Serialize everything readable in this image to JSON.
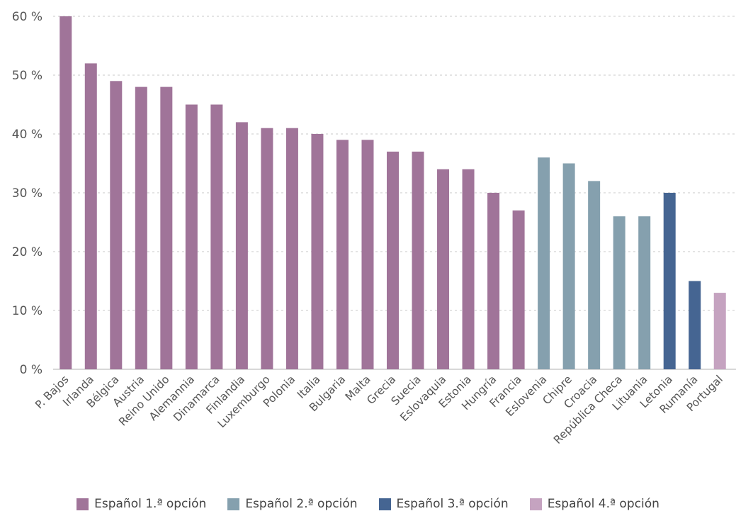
{
  "chart_data": {
    "type": "bar",
    "title": "",
    "xlabel": "",
    "ylabel": "",
    "ylim": [
      0,
      60
    ],
    "y_ticks": [
      "0 %",
      "10 %",
      "20 %",
      "30 %",
      "40 %",
      "50 %",
      "60 %"
    ],
    "y_tick_values": [
      0,
      10,
      20,
      30,
      40,
      50,
      60
    ],
    "grid": true,
    "legend_position": "bottom",
    "categories": [
      "P. Bajos",
      "Irlanda",
      "Bélgica",
      "Austria",
      "Reino Unido",
      "Alemannia",
      "Dinamarca",
      "Finlandia",
      "Luxemburgo",
      "Polonia",
      "Italia",
      "Bulgaria",
      "Malta",
      "Grecia",
      "Suecia",
      "Eslovaquia",
      "Estonia",
      "Hungría",
      "Francia",
      "Eslovenia",
      "Chipre",
      "Croacia",
      "República Checa",
      "Lituania",
      "Letonia",
      "Rumanía",
      "Portugal"
    ],
    "values": [
      60,
      52,
      49,
      48,
      48,
      45,
      45,
      42,
      41,
      41,
      40,
      39,
      39,
      37,
      37,
      34,
      34,
      30,
      27,
      36,
      35,
      32,
      26,
      26,
      30,
      15,
      13
    ],
    "value_series": [
      0,
      0,
      0,
      0,
      0,
      0,
      0,
      0,
      0,
      0,
      0,
      0,
      0,
      0,
      0,
      0,
      0,
      0,
      0,
      1,
      1,
      1,
      1,
      1,
      2,
      2,
      3
    ],
    "series": [
      {
        "name": "Español 1.ª opción",
        "color": "#a07499"
      },
      {
        "name": "Español 2.ª opción",
        "color": "#85a0ae"
      },
      {
        "name": "Español 3.ª opción",
        "color": "#456592"
      },
      {
        "name": "Español 4.ª opción",
        "color": "#c5a3c0"
      }
    ]
  }
}
